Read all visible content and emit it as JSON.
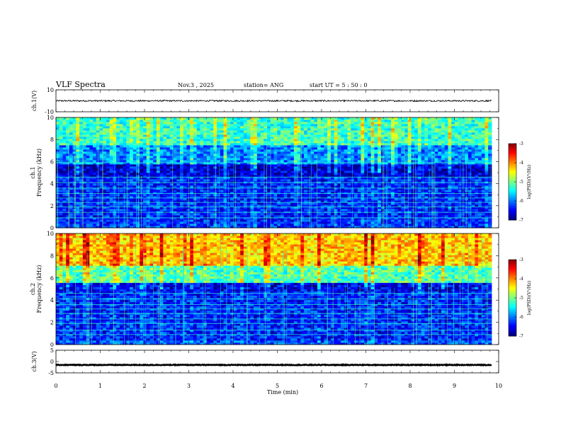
{
  "header": {
    "title": "VLF  Spectra",
    "date": "Nov.3  , 2025",
    "station": "station= ANG",
    "start": "start  UT  =   5  : 50 : 0"
  },
  "chart_data": [
    {
      "type": "line",
      "name": "ch1-waveform",
      "ylabel": "ch.1(V)",
      "ylim": [
        -10,
        10
      ],
      "yticks": [
        "10",
        "-10"
      ],
      "mean": 0,
      "noise_amplitude": 0.7
    },
    {
      "type": "heatmap",
      "name": "ch1-spectrogram",
      "ylabel": "ch.1\nFrequency  (kHz)",
      "ylim": [
        0,
        10
      ],
      "yticks": [
        "0",
        "2",
        "4",
        "6",
        "8",
        "10"
      ],
      "colorbar": {
        "label": "log(PSD)(V²/Hz)",
        "range": [
          -7,
          -3
        ],
        "ticks": [
          "-3",
          "-4",
          "-5",
          "-6",
          "-7"
        ]
      },
      "bands_khz": [
        {
          "from": 0,
          "to": 0.4,
          "level": -6.3
        },
        {
          "from": 0.4,
          "to": 4.6,
          "level": -6.4
        },
        {
          "from": 4.6,
          "to": 5.8,
          "level": -6.7
        },
        {
          "from": 5.8,
          "to": 7.5,
          "level": -6.0
        },
        {
          "from": 7.5,
          "to": 10,
          "level": -5.3
        }
      ],
      "tones_khz": [
        0.9,
        1.4,
        1.9,
        2.3,
        2.7,
        3.1,
        3.6,
        4.1,
        4.6,
        5.9
      ]
    },
    {
      "type": "heatmap",
      "name": "ch2-spectrogram",
      "ylabel": "ch.2\nFrequency  (kHz)",
      "ylim": [
        0,
        10
      ],
      "yticks": [
        "0",
        "2",
        "4",
        "6",
        "8",
        "10"
      ],
      "colorbar": {
        "label": "log(PSD)(V²/Hz)",
        "range": [
          -7,
          -3
        ],
        "ticks": [
          "-3",
          "-4",
          "-5",
          "-6",
          "-7"
        ]
      },
      "bands_khz": [
        {
          "from": 0,
          "to": 0.4,
          "level": -6.2
        },
        {
          "from": 0.4,
          "to": 4.8,
          "level": -6.4
        },
        {
          "from": 4.8,
          "to": 5.6,
          "level": -6.6
        },
        {
          "from": 5.6,
          "to": 7.2,
          "level": -5.2
        },
        {
          "from": 7.2,
          "to": 10,
          "level": -4.3
        }
      ],
      "tones_khz": [
        0.9,
        1.3,
        1.9,
        2.3,
        2.8,
        3.2,
        3.6,
        4.1,
        4.6
      ]
    },
    {
      "type": "line",
      "name": "ch3-waveform",
      "ylabel": "ch.3(V)",
      "ylim": [
        -5,
        5
      ],
      "yticks": [
        "5",
        "0",
        "-5"
      ],
      "mean": -1.5,
      "noise_amplitude": 0.15
    }
  ],
  "x_axis": {
    "label": "Time  (min)",
    "range": [
      0,
      10
    ],
    "data_end": 9.84,
    "ticks": [
      "0",
      "1",
      "2",
      "3",
      "4",
      "5",
      "6",
      "7",
      "8",
      "9",
      "10"
    ]
  }
}
